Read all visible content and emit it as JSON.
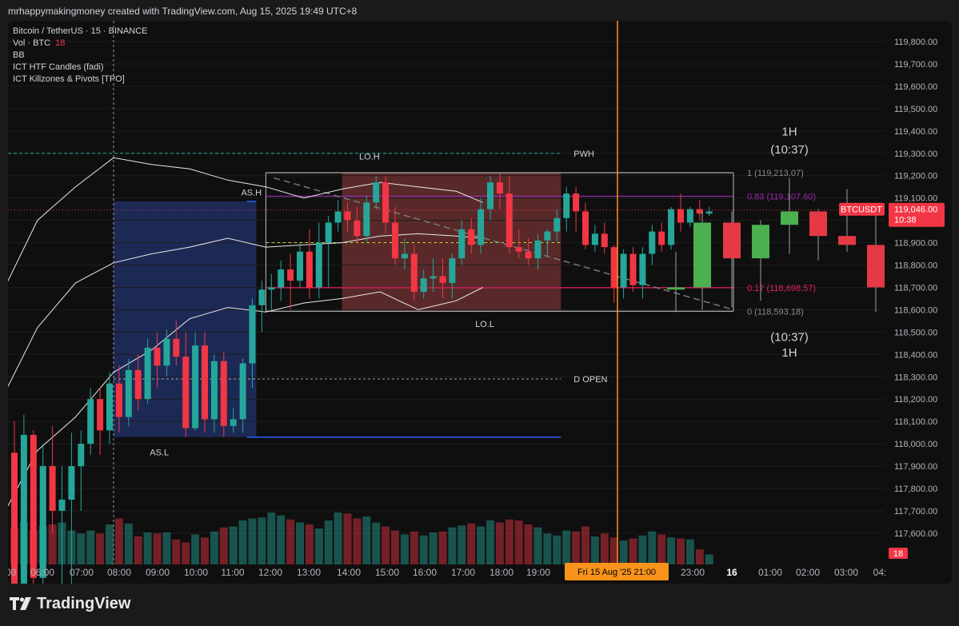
{
  "header": {
    "caption": "mrhappymakingmoney created with TradingView.com, Aug 15, 2025 19:49 UTC+8"
  },
  "legend": {
    "symbol": "Bitcoin / TetherUS · 15 · BINANCE",
    "vol_label": "Vol · BTC",
    "vol_value": "18",
    "indicators": [
      "BB",
      "ICT HTF Candles (fadi)",
      "ICT Killzones & Pivots [TPO]"
    ]
  },
  "footer": {
    "brand": "TradingView"
  },
  "colors": {
    "up": "#26a69a",
    "down": "#f23645",
    "htf_up": "#4caf50",
    "htf_down": "#e53945",
    "asia_box": "#2a3f8f",
    "london_box": "#8a3a3a",
    "fib": "#9c27b0",
    "orange": "#f7931a",
    "bb": "#e8e8e8"
  },
  "chart_data": {
    "type": "candlestick",
    "price_axis": {
      "range": [
        117500,
        119850
      ],
      "ticks": [
        "119,800.00",
        "119,700.00",
        "119,600.00",
        "119,500.00",
        "119,400.00",
        "119,300.00",
        "119,200.00",
        "119,100.00",
        "119,000.00",
        "118,900.00",
        "118,800.00",
        "118,700.00",
        "118,600.00",
        "118,500.00",
        "118,400.00",
        "118,300.00",
        "118,200.00",
        "118,100.00",
        "118,000.00",
        "117,900.00",
        "117,800.00",
        "117,700.00",
        "117,600.00"
      ]
    },
    "time_axis": {
      "labels": [
        ":00",
        "06:00",
        "07:00",
        "08:00",
        "09:00",
        "10:00",
        "11:00",
        "12:00",
        "13:00",
        "14:00",
        "15:00",
        "16:00",
        "17:00",
        "18:00",
        "19:00",
        "23:00",
        "16",
        "01:00",
        "02:00",
        "03:00",
        "04:"
      ],
      "current_label": "Fri 15 Aug '25   21:00"
    },
    "current_price": {
      "symbol": "BTCUSDT",
      "price": 119046.0,
      "price_label": "119,046.00",
      "countdown": "10:38"
    },
    "volume_label": "18",
    "session_labels": {
      "asia_high": "AS.H",
      "asia_low": "AS.L",
      "london_high": "LO.H",
      "london_low": "LO.L",
      "pwh": "PWH",
      "d_open": "D OPEN"
    },
    "levels": {
      "pwh": 119300,
      "d_open": 118290,
      "asia_high": 119085,
      "asia_low": 118030,
      "london_high": 119215,
      "london_low": 118595,
      "mid": 118900
    },
    "fib": [
      {
        "label": "1 (119,213.07)",
        "price": 119213.07
      },
      {
        "label": "0.83 (119,107.60)",
        "price": 119107.6
      },
      {
        "label": "0.17 (118,698.57)",
        "price": 118698.57
      },
      {
        "label": "0 (118,593.18)",
        "price": 118593.18
      }
    ],
    "htf_labels": {
      "top_tf": "1H",
      "top_time": "(10:37)",
      "bottom_time": "(10:37)",
      "bottom_tf": "1H"
    },
    "candles": [
      [
        117960,
        118100,
        117050,
        117200
      ],
      [
        117200,
        118130,
        117050,
        118040
      ],
      [
        118040,
        118060,
        117350,
        117400
      ],
      [
        117400,
        118000,
        117350,
        117900
      ],
      [
        117900,
        118080,
        117600,
        117700
      ],
      [
        117700,
        117900,
        117300,
        117750
      ],
      [
        117750,
        118050,
        117300,
        117900
      ],
      [
        117900,
        118060,
        117700,
        118000
      ],
      [
        118000,
        118250,
        117950,
        118200
      ],
      [
        118200,
        118250,
        117950,
        118060
      ],
      [
        118060,
        118320,
        118000,
        118270
      ],
      [
        118270,
        118350,
        118050,
        118120
      ],
      [
        118120,
        118380,
        118080,
        118330
      ],
      [
        118330,
        118400,
        118150,
        118200
      ],
      [
        118200,
        118470,
        118180,
        118430
      ],
      [
        118430,
        118500,
        118250,
        118350
      ],
      [
        118350,
        118510,
        118300,
        118470
      ],
      [
        118470,
        118550,
        118350,
        118390
      ],
      [
        118390,
        118500,
        118030,
        118070
      ],
      [
        118070,
        118500,
        118060,
        118440
      ],
      [
        118440,
        118500,
        118050,
        118110
      ],
      [
        118110,
        118400,
        118050,
        118370
      ],
      [
        118370,
        118410,
        118030,
        118080
      ],
      [
        118080,
        118160,
        118050,
        118110
      ],
      [
        118110,
        118380,
        118050,
        118360
      ],
      [
        118360,
        118650,
        118250,
        118620
      ],
      [
        118620,
        118730,
        118500,
        118690
      ],
      [
        118690,
        118760,
        118600,
        118700
      ],
      [
        118700,
        118820,
        118640,
        118780
      ],
      [
        118780,
        118850,
        118600,
        118730
      ],
      [
        118730,
        118900,
        118700,
        118860
      ],
      [
        118860,
        118960,
        118650,
        118700
      ],
      [
        118700,
        118990,
        118650,
        118900
      ],
      [
        118900,
        119020,
        118700,
        118990
      ],
      [
        118990,
        119090,
        118950,
        119040
      ],
      [
        119040,
        119080,
        118950,
        119000
      ],
      [
        119000,
        119060,
        118900,
        118930
      ],
      [
        118930,
        119110,
        118900,
        119080
      ],
      [
        119080,
        119200,
        119050,
        119170
      ],
      [
        119170,
        119200,
        118940,
        118990
      ],
      [
        118990,
        119060,
        118800,
        118830
      ],
      [
        118830,
        118920,
        118780,
        118850
      ],
      [
        118850,
        118890,
        118640,
        118680
      ],
      [
        118680,
        118780,
        118650,
        118740
      ],
      [
        118740,
        118830,
        118680,
        118750
      ],
      [
        118750,
        118830,
        118650,
        118720
      ],
      [
        118720,
        118850,
        118650,
        118830
      ],
      [
        118830,
        119000,
        118800,
        118960
      ],
      [
        118960,
        119010,
        118850,
        118890
      ],
      [
        118890,
        119100,
        118850,
        119050
      ],
      [
        119050,
        119200,
        119000,
        119170
      ],
      [
        119170,
        119210,
        119050,
        119120
      ],
      [
        119120,
        119200,
        118850,
        118880
      ],
      [
        118880,
        118960,
        118830,
        118860
      ],
      [
        118860,
        118920,
        118800,
        118830
      ],
      [
        118830,
        118940,
        118780,
        118910
      ],
      [
        118910,
        118960,
        118840,
        118950
      ],
      [
        118950,
        119050,
        118900,
        119010
      ],
      [
        119010,
        119150,
        118950,
        119120
      ],
      [
        119120,
        119150,
        118950,
        119040
      ],
      [
        119040,
        119080,
        118870,
        118890
      ],
      [
        118890,
        118980,
        118860,
        118940
      ],
      [
        118940,
        118990,
        118850,
        118880
      ],
      [
        118880,
        118890,
        118630,
        118700
      ],
      [
        118700,
        118870,
        118650,
        118850
      ],
      [
        118850,
        118880,
        118680,
        118710
      ],
      [
        118710,
        118880,
        118650,
        118850
      ],
      [
        118850,
        118980,
        118800,
        118950
      ],
      [
        118950,
        118990,
        118860,
        118890
      ],
      [
        118890,
        119060,
        118870,
        119050
      ],
      [
        119050,
        119120,
        118950,
        118990
      ],
      [
        118990,
        119060,
        118970,
        119050
      ],
      [
        119050,
        119090,
        119000,
        119030
      ],
      [
        119030,
        119060,
        119020,
        119040
      ]
    ],
    "htf_candles": [
      [
        118690,
        118860,
        118590,
        118700
      ],
      [
        118700,
        119040,
        118600,
        118990
      ],
      [
        118990,
        119040,
        118610,
        118830
      ],
      [
        118830,
        119000,
        118640,
        118980
      ],
      [
        118980,
        119190,
        118850,
        119040
      ],
      [
        119040,
        119050,
        118820,
        118930
      ],
      [
        118930,
        119140,
        118860,
        118890
      ],
      [
        118890,
        119040,
        118590,
        118700
      ]
    ],
    "volume": [
      36,
      42,
      34,
      38,
      40,
      42,
      34,
      31,
      34,
      31,
      40,
      46,
      41,
      28,
      32,
      31,
      32,
      25,
      22,
      30,
      27,
      33,
      37,
      38,
      44,
      46,
      47,
      52,
      49,
      45,
      42,
      40,
      36,
      44,
      52,
      51,
      46,
      48,
      42,
      38,
      34,
      30,
      33,
      29,
      32,
      33,
      37,
      39,
      41,
      38,
      44,
      42,
      45,
      44,
      40,
      37,
      31,
      29,
      34,
      33,
      38,
      28,
      31,
      27,
      24,
      26,
      29,
      33,
      30,
      27,
      26,
      25,
      15,
      10
    ]
  }
}
